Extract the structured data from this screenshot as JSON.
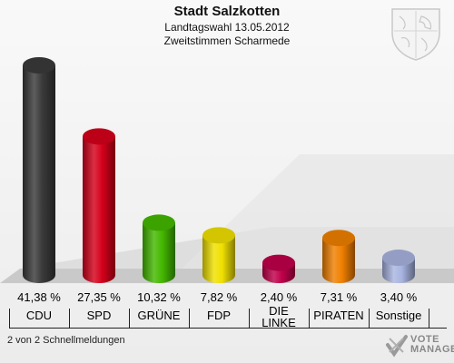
{
  "header": {
    "title": "Stadt Salzkotten",
    "subtitle1": "Landtagswahl 13.05.2012",
    "subtitle2": "Zweitstimmen Scharmede"
  },
  "footer": {
    "text": "2 von 2 Schnellmeldungen"
  },
  "logo": {
    "line1": "VOTE",
    "line2": "MANAGER"
  },
  "chart_data": {
    "type": "bar",
    "title": "Stadt Salzkotten",
    "subtitle": "Landtagswahl 13.05.2012 Zweitstimmen Scharmede",
    "categories": [
      "CDU",
      "SPD",
      "GRÜNE",
      "FDP",
      "DIE LINKE",
      "PIRATEN",
      "Sonstige"
    ],
    "values": [
      41.38,
      27.35,
      10.32,
      7.82,
      2.4,
      7.31,
      3.4
    ],
    "value_labels": [
      "41,38 %",
      "27,35 %",
      "10,32 %",
      "7,82 %",
      "2,40 %",
      "7,31 %",
      "3,40 %"
    ],
    "colors": [
      "#3a3a3a",
      "#d4001a",
      "#44b800",
      "#f0e000",
      "#c0004a",
      "#f08000",
      "#a8b4e0"
    ],
    "ylim": [
      0,
      41.38
    ],
    "grid": false,
    "legend": "none"
  }
}
